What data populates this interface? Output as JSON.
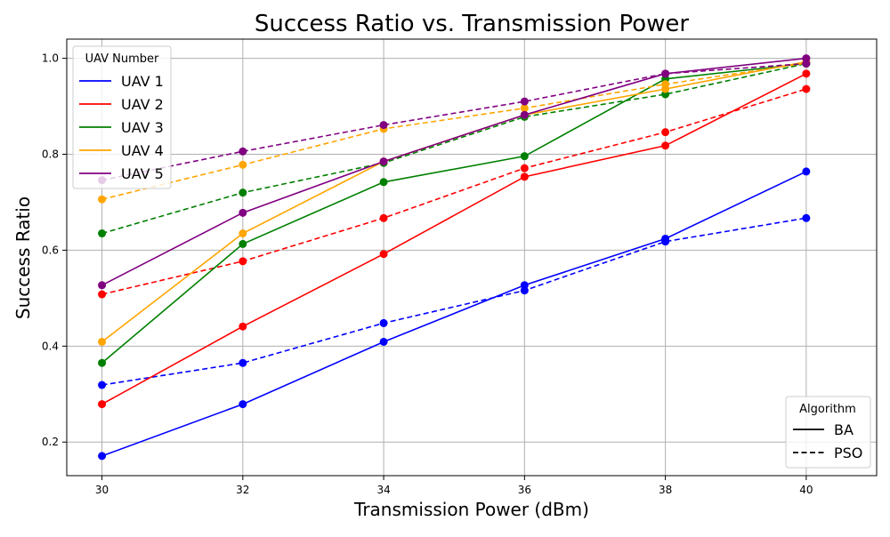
{
  "chart_data": {
    "type": "line",
    "title": "Success Ratio vs. Transmission Power",
    "xlabel": "Transmission Power (dBm)",
    "ylabel": "Success Ratio",
    "x": [
      30,
      32,
      34,
      36,
      38,
      40
    ],
    "xlim": [
      29.5,
      41
    ],
    "ylim": [
      0.13,
      1.04
    ],
    "xticks": [
      30,
      32,
      34,
      36,
      38,
      40
    ],
    "yticks": [
      0.2,
      0.4,
      0.6,
      0.8,
      1.0
    ],
    "ytick_labels": [
      "0.2",
      "0.4",
      "0.6",
      "0.8",
      "1.0"
    ],
    "grid": true,
    "legend_uav": {
      "title": "UAV Number",
      "placement": "top-left",
      "entries": [
        "UAV 1",
        "UAV 2",
        "UAV 3",
        "UAV 4",
        "UAV 5"
      ]
    },
    "legend_algorithm": {
      "title": "Algorithm",
      "placement": "bottom-right",
      "entries": [
        {
          "label": "BA",
          "style": "solid"
        },
        {
          "label": "PSO",
          "style": "dashed"
        }
      ]
    },
    "series": [
      {
        "uav": "UAV 1",
        "algorithm": "BA",
        "color": "#0000ff",
        "style": "solid",
        "values": [
          0.171,
          0.279,
          0.409,
          0.527,
          0.624,
          0.764
        ]
      },
      {
        "uav": "UAV 1",
        "algorithm": "PSO",
        "color": "#0000ff",
        "style": "dashed",
        "values": [
          0.319,
          0.365,
          0.448,
          0.516,
          0.618,
          0.667
        ]
      },
      {
        "uav": "UAV 2",
        "algorithm": "BA",
        "color": "#ff0000",
        "style": "solid",
        "values": [
          0.279,
          0.441,
          0.592,
          0.753,
          0.818,
          0.968
        ]
      },
      {
        "uav": "UAV 2",
        "algorithm": "PSO",
        "color": "#ff0000",
        "style": "dashed",
        "values": [
          0.508,
          0.577,
          0.667,
          0.771,
          0.846,
          0.936
        ]
      },
      {
        "uav": "UAV 3",
        "algorithm": "BA",
        "color": "#008000",
        "style": "solid",
        "values": [
          0.365,
          0.613,
          0.742,
          0.796,
          0.957,
          0.989
        ]
      },
      {
        "uav": "UAV 3",
        "algorithm": "PSO",
        "color": "#008000",
        "style": "dashed",
        "values": [
          0.635,
          0.72,
          0.782,
          0.878,
          0.925,
          0.989
        ]
      },
      {
        "uav": "UAV 4",
        "algorithm": "BA",
        "color": "#ffa500",
        "style": "solid",
        "values": [
          0.409,
          0.635,
          0.785,
          0.882,
          0.936,
          0.993
        ]
      },
      {
        "uav": "UAV 4",
        "algorithm": "PSO",
        "color": "#ffa500",
        "style": "dashed",
        "values": [
          0.706,
          0.778,
          0.853,
          0.896,
          0.946,
          0.99
        ]
      },
      {
        "uav": "UAV 5",
        "algorithm": "BA",
        "color": "#800080",
        "style": "solid",
        "values": [
          0.527,
          0.678,
          0.785,
          0.882,
          0.968,
          1.0
        ]
      },
      {
        "uav": "UAV 5",
        "algorithm": "PSO",
        "color": "#800080",
        "style": "dashed",
        "values": [
          0.746,
          0.806,
          0.861,
          0.91,
          0.968,
          0.989
        ]
      }
    ]
  }
}
